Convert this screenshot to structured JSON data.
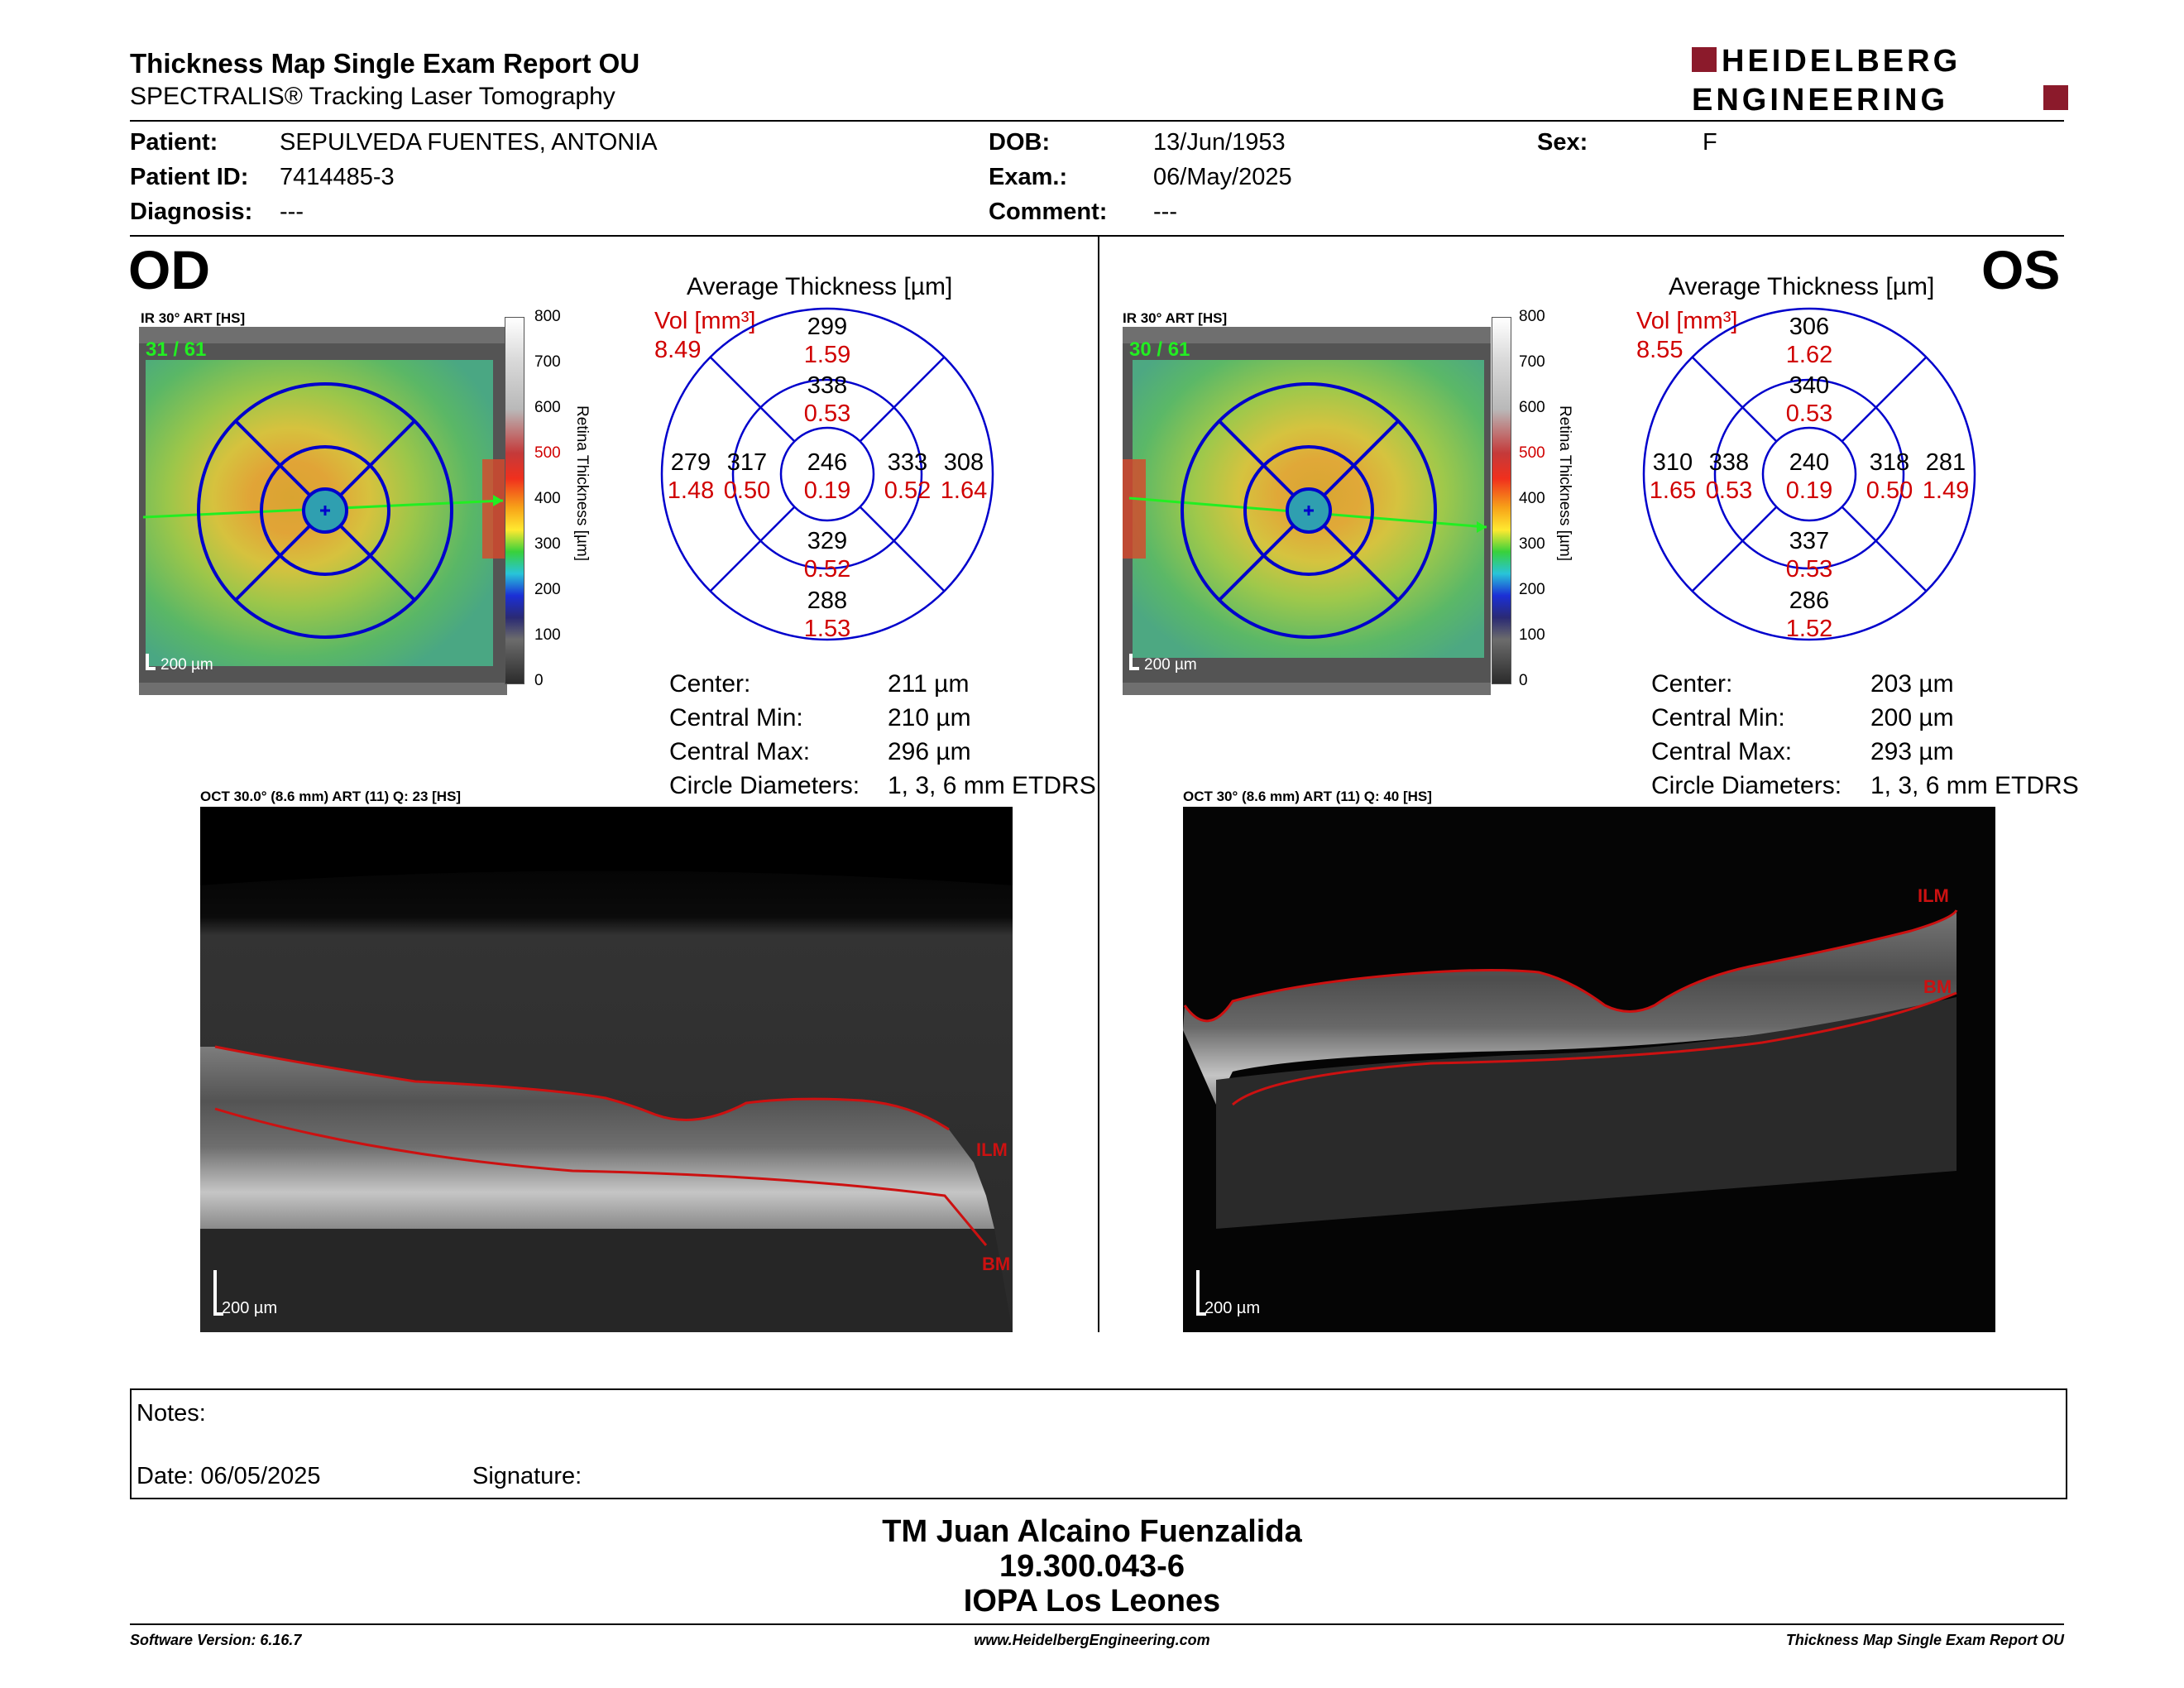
{
  "header": {
    "title": "Thickness Map Single Exam Report OU",
    "subtitle": "SPECTRALIS® Tracking Laser Tomography",
    "logo_line1": "HEIDELBERG",
    "logo_line2": "ENGINEERING"
  },
  "patient": {
    "patient_label": "Patient:",
    "patient_value": "SEPULVEDA FUENTES, ANTONIA",
    "id_label": "Patient ID:",
    "id_value": "7414485-3",
    "diagnosis_label": "Diagnosis:",
    "diagnosis_value": "---",
    "dob_label": "DOB:",
    "dob_value": "13/Jun/1953",
    "exam_label": "Exam.:",
    "exam_value": "06/May/2025",
    "comment_label": "Comment:",
    "comment_value": "---",
    "sex_label": "Sex:",
    "sex_value": "F"
  },
  "od": {
    "eye": "OD",
    "ir_caption": "IR 30° ART [HS]",
    "frame_count": "31 / 61",
    "scale": "200 µm",
    "avg_title": "Average Thickness [µm]",
    "vol_label": "Vol [mm³]",
    "vol_value": "8.49",
    "grid": {
      "center": [
        "246",
        "0.19"
      ],
      "inner_sup": [
        "338",
        "0.53"
      ],
      "inner_inf": [
        "329",
        "0.52"
      ],
      "inner_left": [
        "317",
        "0.50"
      ],
      "inner_right": [
        "333",
        "0.52"
      ],
      "outer_sup": [
        "299",
        "1.59"
      ],
      "outer_inf": [
        "288",
        "1.53"
      ],
      "outer_left": [
        "279",
        "1.48"
      ],
      "outer_right": [
        "308",
        "1.64"
      ]
    },
    "stats": [
      {
        "label": "Center:",
        "value": "211 µm"
      },
      {
        "label": "Central Min:",
        "value": "210 µm"
      },
      {
        "label": "Central Max:",
        "value": "296 µm"
      },
      {
        "label": "Circle Diameters:",
        "value": "1, 3, 6 mm ETDRS"
      }
    ],
    "oct_caption": "OCT 30.0° (8.6 mm) ART (11) Q: 23 [HS]",
    "oct_scale": "200 µm",
    "ilm": "ILM",
    "bm": "BM"
  },
  "os": {
    "eye": "OS",
    "ir_caption": "IR 30° ART [HS]",
    "frame_count": "30 / 61",
    "scale": "200 µm",
    "avg_title": "Average Thickness [µm]",
    "vol_label": "Vol [mm³]",
    "vol_value": "8.55",
    "grid": {
      "center": [
        "240",
        "0.19"
      ],
      "inner_sup": [
        "340",
        "0.53"
      ],
      "inner_inf": [
        "337",
        "0.53"
      ],
      "inner_left": [
        "338",
        "0.53"
      ],
      "inner_right": [
        "318",
        "0.50"
      ],
      "outer_sup": [
        "306",
        "1.62"
      ],
      "outer_inf": [
        "286",
        "1.52"
      ],
      "outer_left": [
        "310",
        "1.65"
      ],
      "outer_right": [
        "281",
        "1.49"
      ]
    },
    "stats": [
      {
        "label": "Center:",
        "value": "203 µm"
      },
      {
        "label": "Central Min:",
        "value": "200 µm"
      },
      {
        "label": "Central Max:",
        "value": "293 µm"
      },
      {
        "label": "Circle Diameters:",
        "value": "1, 3, 6 mm ETDRS"
      }
    ],
    "oct_caption": "OCT 30° (8.6 mm) ART (11) Q: 40 [HS]",
    "oct_scale": "200 µm",
    "ilm": "ILM",
    "bm": "BM"
  },
  "colorbar": {
    "ticks": [
      "800",
      "700",
      "600",
      "500",
      "400",
      "300",
      "200",
      "100",
      "0"
    ],
    "axis_label": "Retina Thickness [µm]"
  },
  "notes": {
    "notes_label": "Notes:",
    "date_label": "Date: 06/05/2025",
    "signature_label": "Signature:"
  },
  "footer": {
    "name_line1": "TM Juan Alcaino Fuenzalida",
    "name_line2": "19.300.043-6",
    "name_line3": "IOPA Los Leones",
    "software": "Software Version: 6.16.7",
    "website": "www.HeidelbergEngineering.com",
    "report": "Thickness Map Single Exam Report OU"
  },
  "colors": {
    "grid_blue": "#0000cc",
    "volume_red": "#d00000",
    "ilm_line": "#cc1111",
    "logo_red": "#8b1a2b"
  }
}
